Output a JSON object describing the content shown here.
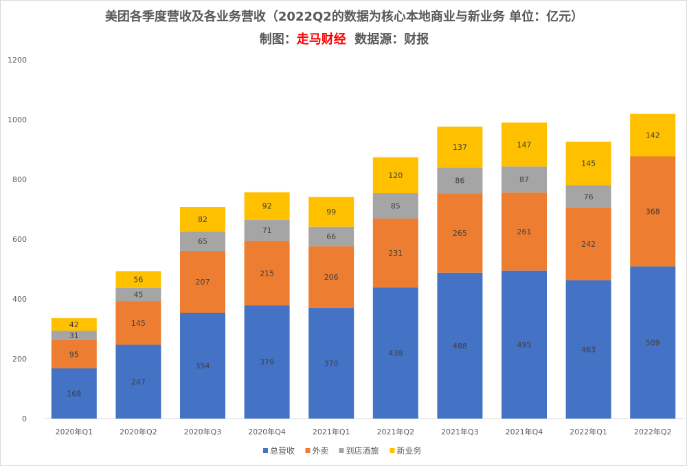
{
  "chart_data": {
    "type": "bar",
    "stacked": true,
    "title": "美团各季度营收及各业务营收（2022Q2的数据为核心本地商业与新业务 单位：亿元）",
    "subtitle_prefix": "制图：",
    "subtitle_brand": "走马财经",
    "subtitle_source": "数据源：财报",
    "categories": [
      "2020年Q1",
      "2020年Q2",
      "2020年Q3",
      "2020年Q4",
      "2021年Q1",
      "2021年Q2",
      "2021年Q3",
      "2021年Q4",
      "2022年Q1",
      "2022年Q2"
    ],
    "series": [
      {
        "name": "总营收",
        "color": "#4472c4",
        "values": [
          168,
          247,
          354,
          379,
          370,
          438,
          488,
          495,
          463,
          509
        ]
      },
      {
        "name": "外卖",
        "color": "#ed7d31",
        "values": [
          95,
          145,
          207,
          215,
          206,
          231,
          265,
          261,
          242,
          368
        ]
      },
      {
        "name": "到店酒旅",
        "color": "#a5a5a5",
        "values": [
          31,
          45,
          65,
          71,
          66,
          85,
          86,
          87,
          76,
          null
        ]
      },
      {
        "name": "新业务",
        "color": "#ffc000",
        "values": [
          42,
          56,
          82,
          92,
          99,
          120,
          137,
          147,
          145,
          142
        ]
      }
    ],
    "ylim": [
      0,
      1200
    ],
    "yticks": [
      0,
      200,
      400,
      600,
      800,
      1000,
      1200
    ],
    "grid": false,
    "legend": "bottom"
  }
}
